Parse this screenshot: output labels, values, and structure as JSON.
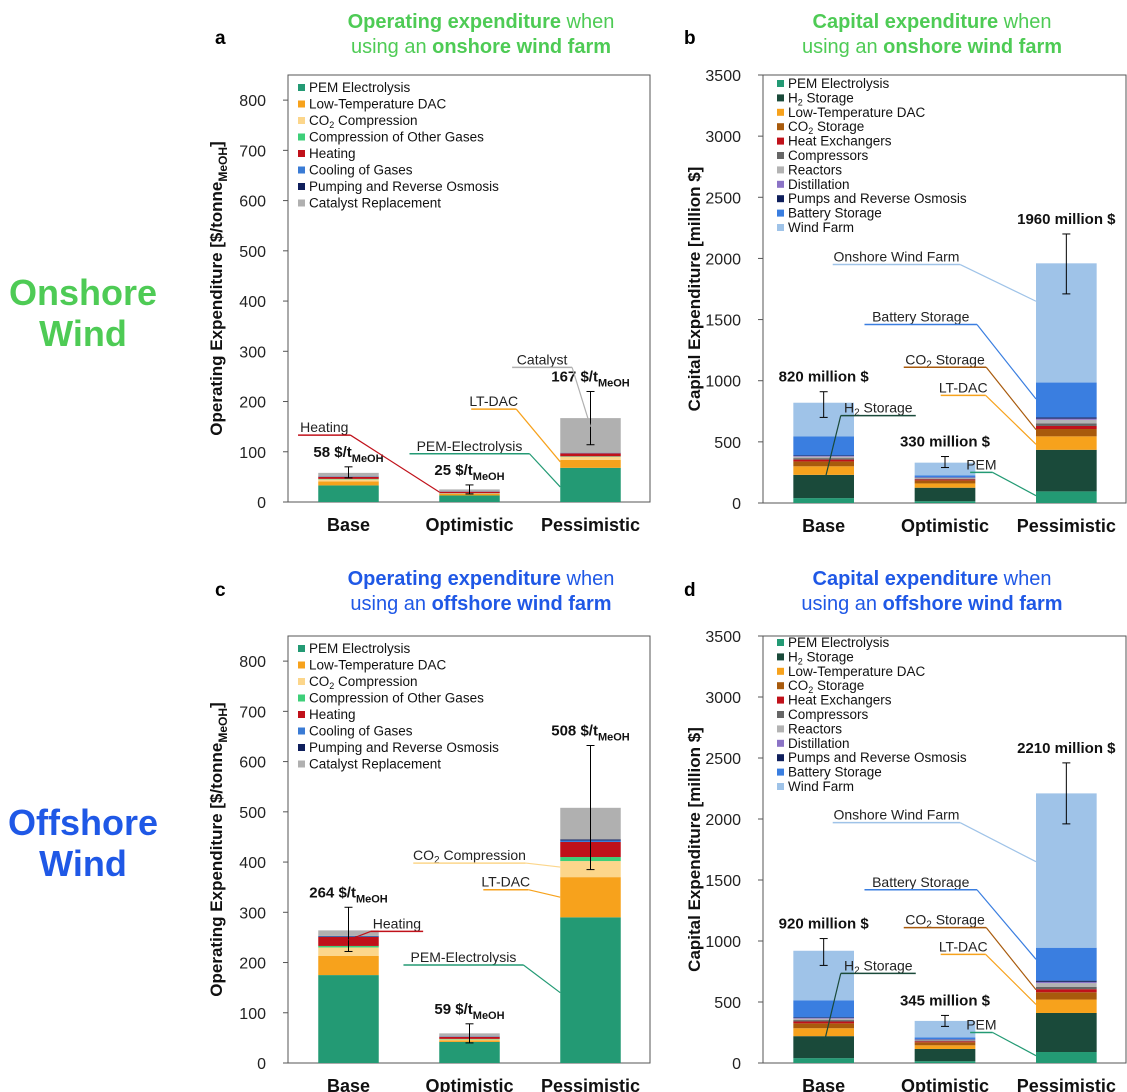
{
  "row_labels": {
    "onshore": {
      "line1": "Onshore",
      "line2": "Wind",
      "color": "#4ecb55"
    },
    "offshore": {
      "line1": "Offshore",
      "line2": "Wind",
      "color": "#1f58e6"
    }
  },
  "colors": {
    "PEM Electrolysis": "#239a74",
    "H2 Storage": "#1a4a3a",
    "Low-Temperature DAC": "#f7a21c",
    "CO2 Compression": "#fcd68b",
    "CO2 Storage": "#a85a0c",
    "Compression of Other Gases": "#3ecf79",
    "Heating": "#c0111a",
    "Heat Exchangers": "#c0111a",
    "Cooling of Gases": "#3a7bd5",
    "Compressors": "#666666",
    "Reactors": "#b3b3b3",
    "Distillation": "#8b73c6",
    "Pumping and Reverse Osmosis": "#0f1f5c",
    "Pumps and Reverse Osmosis": "#0f1f5c",
    "Catalyst Replacement": "#b0b0b0",
    "Battery Storage": "#3a7ee0",
    "Wind Farm": "#9fc3e8"
  },
  "chart_data": [
    {
      "panel": "a",
      "type": "bar",
      "stacked": true,
      "title_parts": [
        {
          "text": "Operating expenditure",
          "bold": true
        },
        {
          "text": " when",
          "bold": false
        },
        {
          "text": "using an ",
          "bold": false,
          "newline": true
        },
        {
          "text": "onshore wind farm",
          "bold": true
        }
      ],
      "title_color": "#4ecb55",
      "ylabel": "Operating Expenditure [$/tonne",
      "ylabel_sub": "MeOH",
      "ylabel_end": "]",
      "ylim": [
        0,
        850
      ],
      "yticks": [
        0,
        100,
        200,
        300,
        400,
        500,
        600,
        700,
        800
      ],
      "categories": [
        "Base",
        "Optimistic",
        "Pessimistic"
      ],
      "legend_items": [
        "PEM Electrolysis",
        "Low-Temperature DAC",
        "CO2 Compression",
        "Compression of Other Gases",
        "Heating",
        "Cooling of Gases",
        "Pumping and Reverse Osmosis",
        "Catalyst Replacement"
      ],
      "legend_labels": [
        "PEM Electrolysis",
        "Low-Temperature DAC",
        "CO₂ Compression",
        "Compression of Other Gases",
        "Heating",
        "Cooling of Gases",
        "Pumping and Reverse Osmosis",
        "Catalyst Replacement"
      ],
      "series": [
        {
          "name": "PEM Electrolysis",
          "values": [
            33,
            13,
            68
          ]
        },
        {
          "name": "Low-Temperature DAC",
          "values": [
            8,
            3,
            16
          ]
        },
        {
          "name": "CO2 Compression",
          "values": [
            4,
            1,
            6
          ]
        },
        {
          "name": "Compression of Other Gases",
          "values": [
            1,
            0.5,
            1
          ]
        },
        {
          "name": "Heating",
          "values": [
            4,
            3,
            6
          ]
        },
        {
          "name": "Cooling of Gases",
          "values": [
            0.5,
            0.3,
            0.5
          ]
        },
        {
          "name": "Pumping and Reverse Osmosis",
          "values": [
            0.5,
            0.3,
            0.5
          ]
        },
        {
          "name": "Catalyst Replacement",
          "values": [
            7,
            4,
            69
          ]
        }
      ],
      "totals": [
        58,
        25,
        167
      ],
      "error_bars": [
        [
          48,
          70
        ],
        [
          16,
          34
        ],
        [
          114,
          220
        ]
      ],
      "total_labels": [
        {
          "main": "58 $/t",
          "sub": "MeOH"
        },
        {
          "main": "25 $/t",
          "sub": "MeOH"
        },
        {
          "main": "167 $/t",
          "sub": "MeOH"
        }
      ],
      "annotations": [
        {
          "text": "Heating",
          "color": "#c0111a",
          "cat": 1,
          "value": 20,
          "text_value": 133,
          "text_cat": -0.2
        },
        {
          "text": "PEM-Electrolysis",
          "color": "#239a74",
          "cat": 2,
          "value": 30,
          "text_value": 96,
          "text_cat": 1.0
        },
        {
          "text": "LT-DAC",
          "color": "#f7a21c",
          "cat": 2,
          "value": 80,
          "text_value": 185,
          "text_cat": 1.2
        },
        {
          "text": "Catalyst",
          "color": "#b0b0b0",
          "cat": 2,
          "value": 150,
          "text_value": 268,
          "text_cat": 1.6
        }
      ]
    },
    {
      "panel": "b",
      "type": "bar",
      "stacked": true,
      "title_parts": [
        {
          "text": "Capital expenditure",
          "bold": true
        },
        {
          "text": " when",
          "bold": false
        },
        {
          "text": "using an ",
          "bold": false,
          "newline": true
        },
        {
          "text": "onshore wind farm",
          "bold": true
        }
      ],
      "title_color": "#4ecb55",
      "ylabel": "Capital Expenditure [million $]",
      "ylim": [
        0,
        3500
      ],
      "yticks": [
        0,
        500,
        1000,
        1500,
        2000,
        2500,
        3000,
        3500
      ],
      "categories": [
        "Base",
        "Optimistic",
        "Pessimistic"
      ],
      "legend_items": [
        "PEM Electrolysis",
        "H2 Storage",
        "Low-Temperature DAC",
        "CO2 Storage",
        "Heat Exchangers",
        "Compressors",
        "Reactors",
        "Distillation",
        "Pumps and Reverse Osmosis",
        "Battery Storage",
        "Wind Farm"
      ],
      "legend_labels": [
        "PEM Electrolysis",
        "H₂ Storage",
        "Low-Temperature DAC",
        "CO₂ Storage",
        "Heat Exchangers",
        "Compressors",
        "Reactors",
        "Distillation",
        "Pumps and Reverse Osmosis",
        "Battery Storage",
        "Wind Farm"
      ],
      "series": [
        {
          "name": "PEM Electrolysis",
          "values": [
            40,
            15,
            95
          ]
        },
        {
          "name": "H2 Storage",
          "values": [
            190,
            110,
            340
          ]
        },
        {
          "name": "Low-Temperature DAC",
          "values": [
            70,
            35,
            110
          ]
        },
        {
          "name": "CO2 Storage",
          "values": [
            40,
            25,
            60
          ]
        },
        {
          "name": "Heat Exchangers",
          "values": [
            15,
            8,
            25
          ]
        },
        {
          "name": "Compressors",
          "values": [
            12,
            6,
            20
          ]
        },
        {
          "name": "Reactors",
          "values": [
            12,
            6,
            30
          ]
        },
        {
          "name": "Distillation",
          "values": [
            5,
            3,
            10
          ]
        },
        {
          "name": "Pumps and Reverse Osmosis",
          "values": [
            5,
            3,
            10
          ]
        },
        {
          "name": "Battery Storage",
          "values": [
            155,
            14,
            285
          ]
        },
        {
          "name": "Wind Farm",
          "values": [
            276,
            105,
            975
          ]
        }
      ],
      "totals": [
        820,
        330,
        1960
      ],
      "error_bars": [
        [
          700,
          910
        ],
        [
          290,
          380
        ],
        [
          1710,
          2200
        ]
      ],
      "total_labels": [
        {
          "main": "820 million $",
          "sub": ""
        },
        {
          "main": "330 million $",
          "sub": ""
        },
        {
          "main": "1960 million $",
          "sub": ""
        }
      ],
      "annotations": [
        {
          "text": "H₂ Storage",
          "color": "#1a4a3a",
          "cat": 0,
          "value": 150,
          "text_value": 715,
          "text_cat": 0.45
        },
        {
          "text": "PEM",
          "color": "#239a74",
          "cat": 2,
          "value": 60,
          "text_value": 250,
          "text_cat": 1.3
        },
        {
          "text": "LT-DAC",
          "color": "#f7a21c",
          "cat": 2,
          "value": 480,
          "text_value": 880,
          "text_cat": 1.15
        },
        {
          "text": "CO₂ Storage",
          "color": "#a85a0c",
          "cat": 2,
          "value": 600,
          "text_value": 1110,
          "text_cat": 1.0
        },
        {
          "text": "Battery Storage",
          "color": "#3a7ee0",
          "cat": 2,
          "value": 850,
          "text_value": 1460,
          "text_cat": 0.8
        },
        {
          "text": "Onshore Wind Farm",
          "color": "#9fc3e8",
          "cat": 2,
          "value": 1650,
          "text_value": 1950,
          "text_cat": 0.6
        }
      ]
    },
    {
      "panel": "c",
      "type": "bar",
      "stacked": true,
      "title_parts": [
        {
          "text": "Operating expenditure",
          "bold": true
        },
        {
          "text": " when",
          "bold": false
        },
        {
          "text": "using an ",
          "bold": false,
          "newline": true
        },
        {
          "text": "offshore wind farm",
          "bold": true
        }
      ],
      "title_color": "#1f58e6",
      "ylabel": "Operating Expenditure [$/tonne",
      "ylabel_sub": "MeOH",
      "ylabel_end": "]",
      "ylim": [
        0,
        850
      ],
      "yticks": [
        0,
        100,
        200,
        300,
        400,
        500,
        600,
        700,
        800
      ],
      "categories": [
        "Base",
        "Optimistic",
        "Pessimistic"
      ],
      "legend_items": [
        "PEM Electrolysis",
        "Low-Temperature DAC",
        "CO2 Compression",
        "Compression of Other Gases",
        "Heating",
        "Cooling of Gases",
        "Pumping and Reverse Osmosis",
        "Catalyst Replacement"
      ],
      "legend_labels": [
        "PEM Electrolysis",
        "Low-Temperature DAC",
        "CO₂ Compression",
        "Compression of Other Gases",
        "Heating",
        "Cooling of Gases",
        "Pumping and Reverse Osmosis",
        "Catalyst Replacement"
      ],
      "series": [
        {
          "name": "PEM Electrolysis",
          "values": [
            175,
            42,
            290
          ]
        },
        {
          "name": "Low-Temperature DAC",
          "values": [
            38,
            3,
            80
          ]
        },
        {
          "name": "CO2 Compression",
          "values": [
            17,
            2,
            32
          ]
        },
        {
          "name": "Compression of Other Gases",
          "values": [
            3,
            1,
            8
          ]
        },
        {
          "name": "Heating",
          "values": [
            18,
            4,
            30
          ]
        },
        {
          "name": "Cooling of Gases",
          "values": [
            1,
            0.5,
            3
          ]
        },
        {
          "name": "Pumping and Reverse Osmosis",
          "values": [
            1,
            0.5,
            2
          ]
        },
        {
          "name": "Catalyst Replacement",
          "values": [
            11,
            6,
            63
          ]
        }
      ],
      "totals": [
        264,
        59,
        508
      ],
      "error_bars": [
        [
          222,
          310
        ],
        [
          40,
          78
        ],
        [
          385,
          632
        ]
      ],
      "total_labels": [
        {
          "main": "264 $/t",
          "sub": "MeOH"
        },
        {
          "main": "59 $/t",
          "sub": "MeOH"
        },
        {
          "main": "508 $/t",
          "sub": "MeOH"
        }
      ],
      "annotations": [
        {
          "text": "Heating",
          "color": "#c0111a",
          "cat": 0,
          "value": 245,
          "text_value": 262,
          "text_cat": 0.4
        },
        {
          "text": "PEM-Electrolysis",
          "color": "#239a74",
          "cat": 2,
          "value": 140,
          "text_value": 195,
          "text_cat": 0.95
        },
        {
          "text": "LT-DAC",
          "color": "#f7a21c",
          "cat": 2,
          "value": 330,
          "text_value": 345,
          "text_cat": 1.3
        },
        {
          "text": "CO₂ Compression",
          "color": "#fcd68b",
          "cat": 2,
          "value": 390,
          "text_value": 398,
          "text_cat": 1.0
        }
      ]
    },
    {
      "panel": "d",
      "type": "bar",
      "stacked": true,
      "title_parts": [
        {
          "text": "Capital expenditure",
          "bold": true
        },
        {
          "text": " when",
          "bold": false
        },
        {
          "text": "using an ",
          "bold": false,
          "newline": true
        },
        {
          "text": "offshore wind farm",
          "bold": true
        }
      ],
      "title_color": "#1f58e6",
      "ylabel": "Capital Expenditure [million $]",
      "ylim": [
        0,
        3500
      ],
      "yticks": [
        0,
        500,
        1000,
        1500,
        2000,
        2500,
        3000,
        3500
      ],
      "categories": [
        "Base",
        "Optimistic",
        "Pessimistic"
      ],
      "legend_items": [
        "PEM Electrolysis",
        "H2 Storage",
        "Low-Temperature DAC",
        "CO2 Storage",
        "Heat Exchangers",
        "Compressors",
        "Reactors",
        "Distillation",
        "Pumps and Reverse Osmosis",
        "Battery Storage",
        "Wind Farm"
      ],
      "legend_labels": [
        "PEM Electrolysis",
        "H₂ Storage",
        "Low-Temperature DAC",
        "CO₂ Storage",
        "Heat Exchangers",
        "Compressors",
        "Reactors",
        "Distillation",
        "Pumps and Reverse Osmosis",
        "Battery Storage",
        "Wind Farm"
      ],
      "series": [
        {
          "name": "PEM Electrolysis",
          "values": [
            40,
            15,
            90
          ]
        },
        {
          "name": "H2 Storage",
          "values": [
            180,
            100,
            320
          ]
        },
        {
          "name": "Low-Temperature DAC",
          "values": [
            65,
            30,
            110
          ]
        },
        {
          "name": "CO2 Storage",
          "values": [
            40,
            25,
            60
          ]
        },
        {
          "name": "Heat Exchangers",
          "values": [
            15,
            8,
            25
          ]
        },
        {
          "name": "Compressors",
          "values": [
            12,
            6,
            20
          ]
        },
        {
          "name": "Reactors",
          "values": [
            12,
            6,
            30
          ]
        },
        {
          "name": "Distillation",
          "values": [
            5,
            3,
            10
          ]
        },
        {
          "name": "Pumps and Reverse Osmosis",
          "values": [
            5,
            3,
            10
          ]
        },
        {
          "name": "Battery Storage",
          "values": [
            140,
            14,
            270
          ]
        },
        {
          "name": "Wind Farm",
          "values": [
            406,
            135,
            1265
          ]
        }
      ],
      "totals": [
        920,
        345,
        2210
      ],
      "error_bars": [
        [
          800,
          1020
        ],
        [
          300,
          390
        ],
        [
          1960,
          2460
        ]
      ],
      "total_labels": [
        {
          "main": "920 million $",
          "sub": ""
        },
        {
          "main": "345 million $",
          "sub": ""
        },
        {
          "main": "2210 million $",
          "sub": ""
        }
      ],
      "annotations": [
        {
          "text": "H₂ Storage",
          "color": "#1a4a3a",
          "cat": 0,
          "value": 150,
          "text_value": 735,
          "text_cat": 0.45
        },
        {
          "text": "PEM",
          "color": "#239a74",
          "cat": 2,
          "value": 60,
          "text_value": 250,
          "text_cat": 1.3
        },
        {
          "text": "LT-DAC",
          "color": "#f7a21c",
          "cat": 2,
          "value": 480,
          "text_value": 890,
          "text_cat": 1.15
        },
        {
          "text": "CO₂ Storage",
          "color": "#a85a0c",
          "cat": 2,
          "value": 600,
          "text_value": 1110,
          "text_cat": 1.0
        },
        {
          "text": "Battery Storage",
          "color": "#3a7ee0",
          "cat": 2,
          "value": 850,
          "text_value": 1420,
          "text_cat": 0.8
        },
        {
          "text": "Onshore Wind Farm",
          "color": "#9fc3e8",
          "cat": 2,
          "value": 1650,
          "text_value": 1970,
          "text_cat": 0.6
        }
      ]
    }
  ]
}
